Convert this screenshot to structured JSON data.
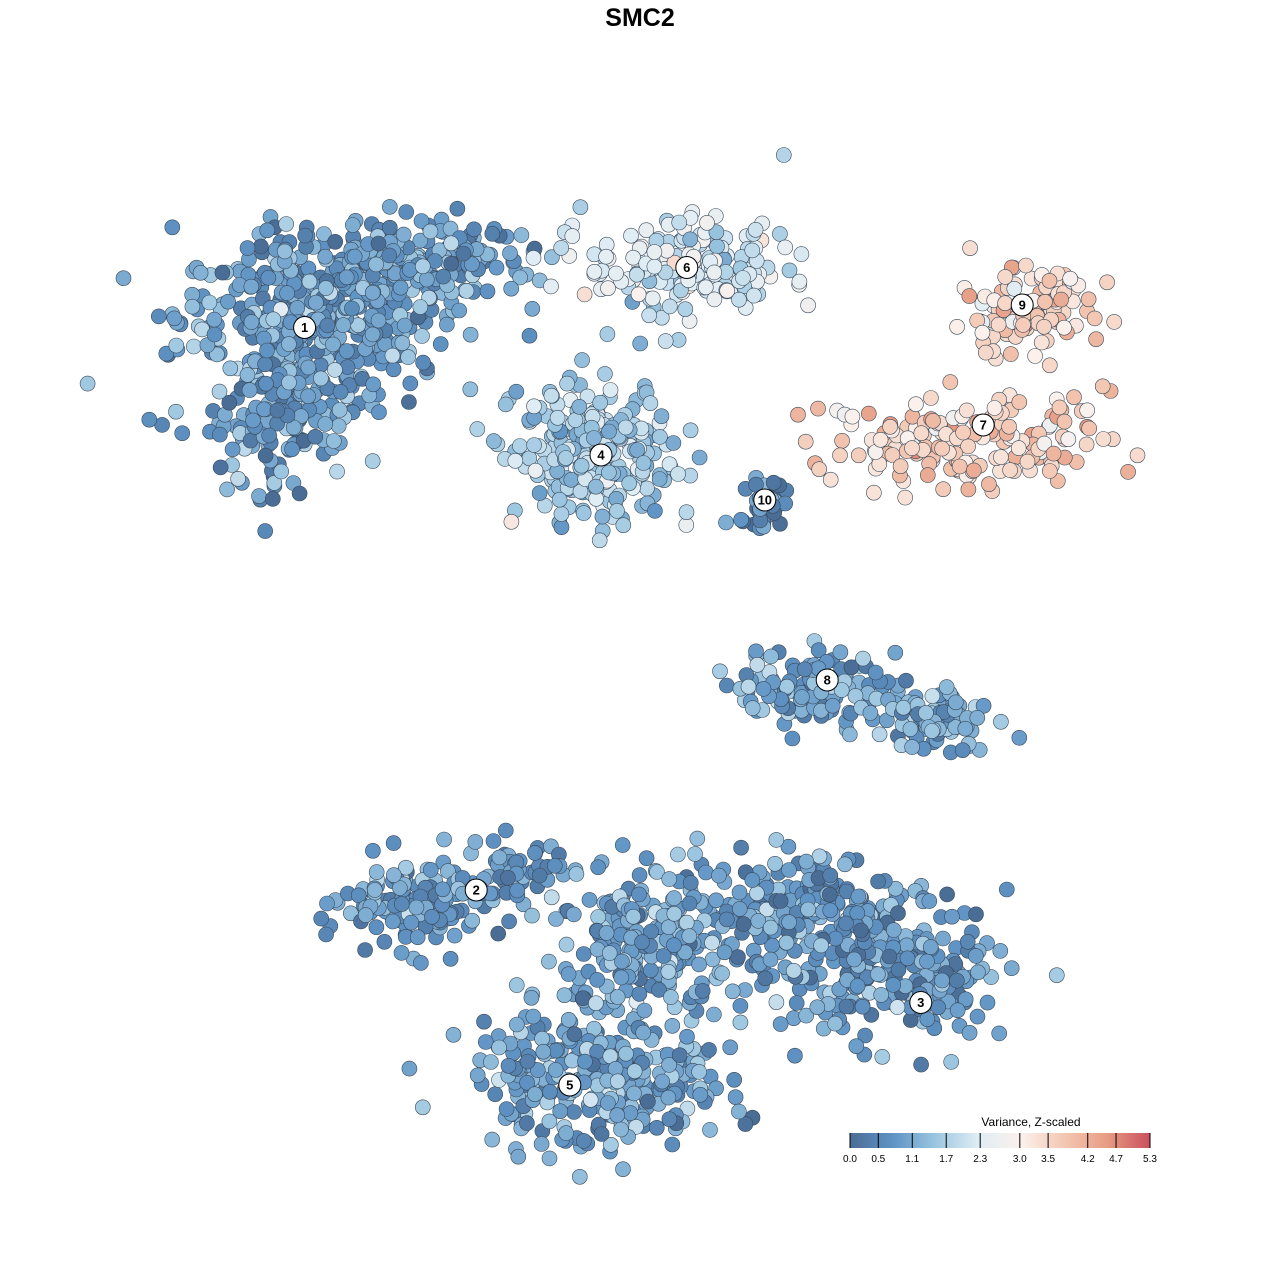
{
  "chart_data": {
    "type": "scatter",
    "title": "SMC2",
    "xlabel": "",
    "ylabel": "",
    "color_scale": {
      "title": "Variance, Z-scaled",
      "min": 0.0,
      "max": 5.3,
      "ticks": [
        "0.0",
        "0.5",
        "1.1",
        "1.7",
        "2.3",
        "3.0",
        "3.5",
        "4.2",
        "4.7",
        "5.3"
      ],
      "colors": [
        "#4a6d96",
        "#5f93c4",
        "#9cc6e0",
        "#e0edf4",
        "#fbf1ec",
        "#f3c7b2",
        "#e79c84",
        "#c94f5c"
      ]
    },
    "clusters": [
      {
        "id": "1",
        "label_pos": [
          -4.3,
          3.9
        ],
        "value": 0.9
      },
      {
        "id": "2",
        "label_pos": [
          -2.1,
          -3.6
        ],
        "value": 0.8
      },
      {
        "id": "3",
        "label_pos": [
          3.6,
          -5.1
        ],
        "value": 0.8
      },
      {
        "id": "4",
        "label_pos": [
          -0.5,
          2.2
        ],
        "value": 1.6
      },
      {
        "id": "5",
        "label_pos": [
          -0.9,
          -6.2
        ],
        "value": 1.0
      },
      {
        "id": "6",
        "label_pos": [
          0.6,
          4.7
        ],
        "value": 2.2
      },
      {
        "id": "7",
        "label_pos": [
          4.4,
          2.6
        ],
        "value": 3.6
      },
      {
        "id": "8",
        "label_pos": [
          2.4,
          -0.8
        ],
        "value": 1.0
      },
      {
        "id": "9",
        "label_pos": [
          4.9,
          4.2
        ],
        "value": 3.5
      },
      {
        "id": "10",
        "label_pos": [
          1.6,
          1.6
        ],
        "value": 0.5
      }
    ]
  }
}
